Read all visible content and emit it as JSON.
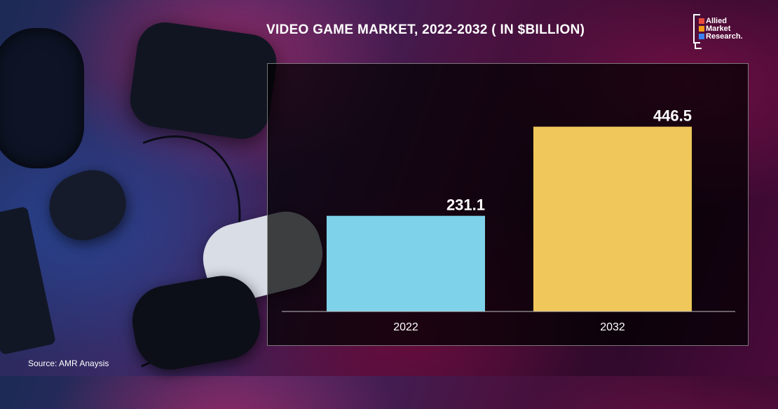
{
  "chart_data": {
    "type": "bar",
    "title": "VIDEO GAME MARKET, 2022-2032 ( IN $BILLION)",
    "categories": [
      "2022",
      "2032"
    ],
    "values": [
      231.1,
      446.5
    ],
    "value_labels": [
      "231.1",
      "446.5"
    ],
    "colors": [
      "#7ed3ea",
      "#f0c75a"
    ],
    "ylim": [
      0,
      500
    ],
    "grid": false,
    "legend": "none"
  },
  "logo": {
    "lines": [
      "Allied",
      "Market",
      "Research."
    ],
    "colors": [
      "#e84c3d",
      "#f39c12",
      "#3b82f6"
    ]
  },
  "footer": {
    "source": "Source: AMR Anaysis"
  }
}
